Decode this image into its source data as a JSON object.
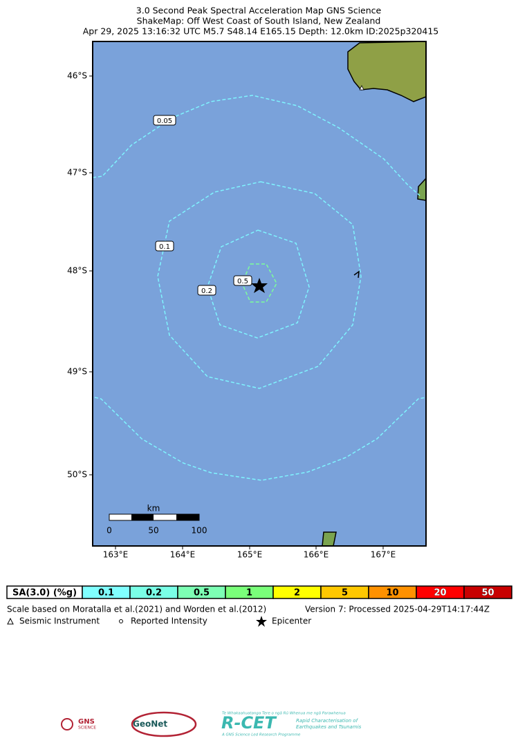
{
  "header": {
    "lines": [
      "3.0 Second Peak Spectral Acceleration Map GNS Science",
      "ShakeMap: Off West Coast of South Island, New Zealand",
      "Apr 29, 2025 13:16:32 UTC M5.7 S48.14 E165.15 Depth: 12.0km ID:2025p320415"
    ]
  },
  "map": {
    "lat_labels": [
      "46°S",
      "47°S",
      "48°S",
      "49°S",
      "50°S"
    ],
    "lon_labels": [
      "163°E",
      "164°E",
      "165°E",
      "166°E",
      "167°E"
    ],
    "contour_labels": [
      "0.05",
      "0.1",
      "0.2",
      "0.5"
    ],
    "scale_bar": {
      "unit": "km",
      "labels": [
        "0",
        "50",
        "100"
      ]
    }
  },
  "legend": {
    "label": "SA(3.0) (%g)",
    "bins": [
      {
        "label": "0.1",
        "color": "#80ffff"
      },
      {
        "label": "0.2",
        "color": "#7affe6"
      },
      {
        "label": "0.5",
        "color": "#7dffb4"
      },
      {
        "label": "1",
        "color": "#7aff7a"
      },
      {
        "label": "2",
        "color": "#ffff00"
      },
      {
        "label": "5",
        "color": "#ffc800"
      },
      {
        "label": "10",
        "color": "#ff9100"
      },
      {
        "label": "20",
        "color": "#ff0000"
      },
      {
        "label": "50",
        "color": "#c80000"
      }
    ]
  },
  "notes": [
    "Scale based on Moratalla et al.(2021) and Worden et al.(2012)",
    "Version 7: Processed 2025-04-29T14:17:44Z"
  ],
  "key": [
    "Seismic Instrument",
    "Reported Intensity",
    "Epicenter"
  ],
  "logos": {
    "gns": "GNS",
    "gns_sub": "SCIENCE",
    "geonet": "GeoNet",
    "rcet": "R-CET",
    "rcet_top": "Te Whakaahuatanga Tere o ngā Rū Whenua me ngā Parawhenua",
    "rcet_side1": "Rapid Characterisation of",
    "rcet_side2": "Earthquakes and Tsunamis",
    "rcet_bottom": "A GNS Science Led Research Programme"
  }
}
